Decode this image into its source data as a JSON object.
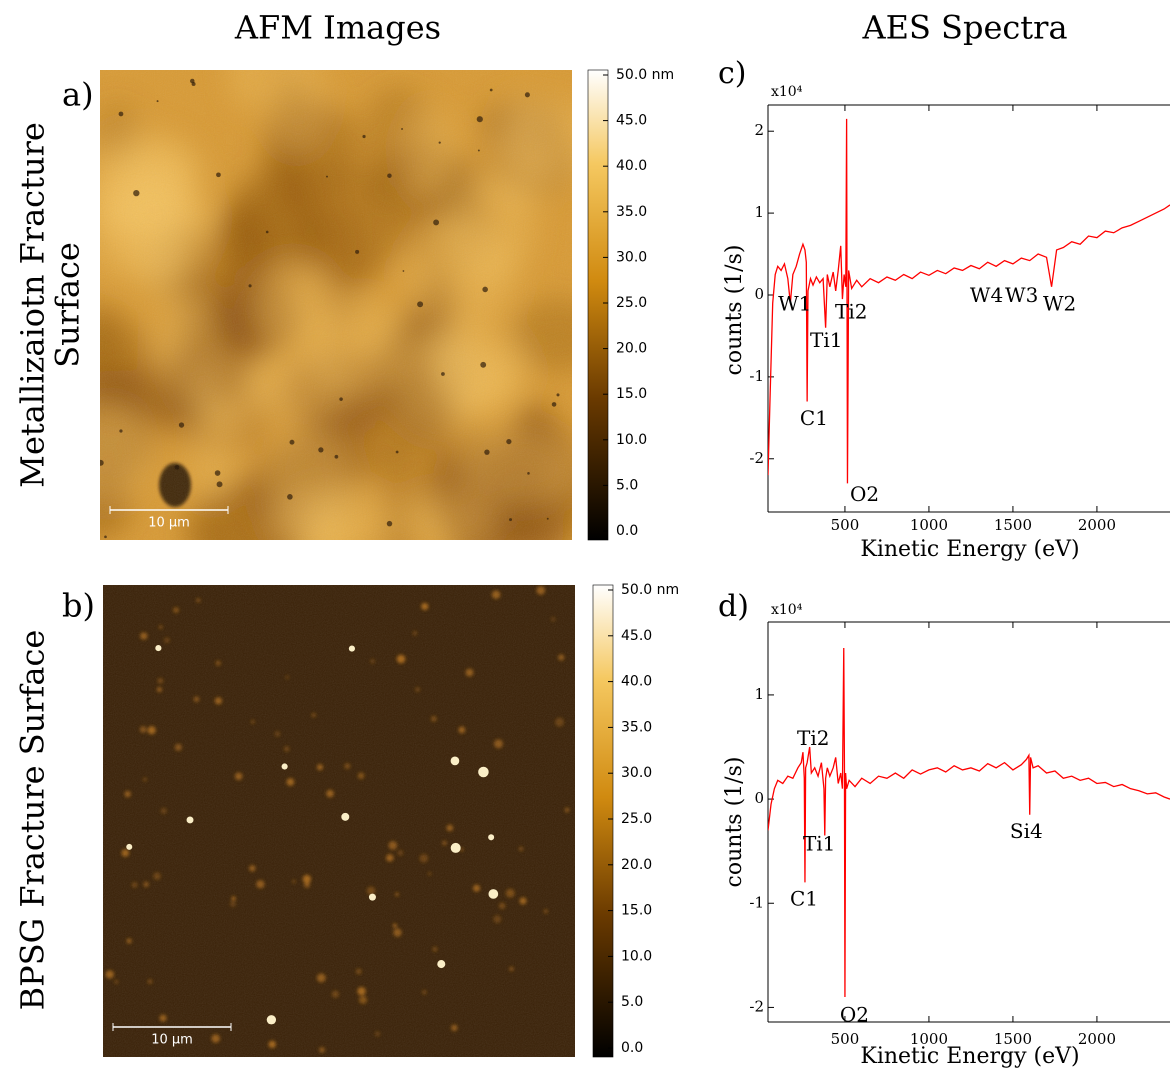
{
  "column_titles": [
    "AFM Images",
    "AES Spectra"
  ],
  "row_titles": [
    [
      "Metallizaiotn Fracture",
      "Surface"
    ],
    [
      "BPSG Fracture Surface"
    ]
  ],
  "chart_data": [
    {
      "type": "image",
      "panel": "a)",
      "scale_bar": "10 µm",
      "ylim": [
        0,
        50
      ],
      "yticks": [
        {
          "value": 0,
          "label": "0.0"
        },
        {
          "value": 5,
          "label": "5.0"
        },
        {
          "value": 10,
          "label": "10.0"
        },
        {
          "value": 15,
          "label": "15.0"
        },
        {
          "value": 20,
          "label": "20.0"
        },
        {
          "value": 25,
          "label": "25.0"
        },
        {
          "value": 30,
          "label": "30.0"
        },
        {
          "value": 35,
          "label": "35.0"
        },
        {
          "value": 40,
          "label": "40.0"
        },
        {
          "value": 45,
          "label": "45.0"
        },
        {
          "value": 50,
          "label": "50.0 nm"
        }
      ]
    },
    {
      "type": "image",
      "panel": "b)",
      "scale_bar": "10 µm",
      "ylim": [
        0,
        50
      ],
      "yticks": [
        {
          "value": 0,
          "label": "0.0"
        },
        {
          "value": 5,
          "label": "5.0"
        },
        {
          "value": 10,
          "label": "10.0"
        },
        {
          "value": 15,
          "label": "15.0"
        },
        {
          "value": 20,
          "label": "20.0"
        },
        {
          "value": 25,
          "label": "25.0"
        },
        {
          "value": 30,
          "label": "30.0"
        },
        {
          "value": 35,
          "label": "35.0"
        },
        {
          "value": 40,
          "label": "40.0"
        },
        {
          "value": 45,
          "label": "45.0"
        },
        {
          "value": 50,
          "label": "50.0 nm"
        }
      ]
    },
    {
      "type": "line",
      "panel": "c)",
      "y_multiplier": "x10⁴",
      "xlabel": "Kinetic Energy (eV)",
      "ylabel": "counts (1/s)",
      "xlim": [
        42,
        2435
      ],
      "ylim": [
        -2.65,
        2.32
      ],
      "xticks": [
        500,
        1000,
        1500,
        2000
      ],
      "yticks": [
        -2,
        -1,
        0,
        1,
        2
      ],
      "x": [
        42,
        55,
        70,
        85,
        100,
        120,
        140,
        160,
        175,
        190,
        210,
        230,
        250,
        262,
        270,
        275,
        280,
        295,
        310,
        330,
        350,
        370,
        385,
        395,
        410,
        430,
        445,
        460,
        475,
        485,
        495,
        505,
        510,
        515,
        522,
        540,
        570,
        600,
        650,
        700,
        750,
        800,
        850,
        900,
        950,
        1000,
        1050,
        1100,
        1150,
        1200,
        1250,
        1300,
        1350,
        1400,
        1450,
        1500,
        1550,
        1600,
        1650,
        1700,
        1730,
        1760,
        1800,
        1850,
        1900,
        1950,
        2000,
        2050,
        2100,
        2150,
        2200,
        2250,
        2300,
        2350,
        2400,
        2435
      ],
      "series": [
        {
          "color": "#ff0000",
          "values": [
            -2.2,
            -1.2,
            -0.1,
            0.25,
            0.35,
            0.3,
            0.38,
            0.2,
            -0.1,
            0.25,
            0.35,
            0.5,
            0.62,
            0.55,
            0.4,
            -1.3,
            0.05,
            0.2,
            0.12,
            0.22,
            0.15,
            0.2,
            -0.4,
            0.25,
            0.1,
            0.28,
            0.05,
            0.3,
            0.6,
            -0.05,
            0.25,
            0.1,
            2.15,
            -2.3,
            0.3,
            0.08,
            0.18,
            0.1,
            0.2,
            0.15,
            0.22,
            0.18,
            0.25,
            0.2,
            0.28,
            0.24,
            0.3,
            0.26,
            0.33,
            0.3,
            0.36,
            0.32,
            0.4,
            0.35,
            0.42,
            0.38,
            0.45,
            0.42,
            0.5,
            0.46,
            0.1,
            0.55,
            0.58,
            0.65,
            0.62,
            0.72,
            0.7,
            0.78,
            0.76,
            0.82,
            0.85,
            0.9,
            0.95,
            1.0,
            1.05,
            1.1
          ]
        }
      ],
      "annotations": [
        {
          "text": "W1",
          "x": 102,
          "y": -0.12
        },
        {
          "text": "Ti2",
          "x": 441,
          "y": -0.22
        },
        {
          "text": "Ti1",
          "x": 292,
          "y": -0.57
        },
        {
          "text": "C1",
          "x": 232,
          "y": -1.52
        },
        {
          "text": "O2",
          "x": 530,
          "y": -2.45
        },
        {
          "text": "W4",
          "x": 1244,
          "y": -0.02
        },
        {
          "text": "W3",
          "x": 1453,
          "y": -0.02
        },
        {
          "text": "W2",
          "x": 1679,
          "y": -0.12
        }
      ]
    },
    {
      "type": "line",
      "panel": "d)",
      "y_multiplier": "x10⁴",
      "xlabel": "Kinetic Energy (eV)",
      "ylabel": "counts (1/s)",
      "xlim": [
        42,
        2435
      ],
      "ylim": [
        -2.14,
        1.7
      ],
      "xticks": [
        500,
        1000,
        1500,
        2000
      ],
      "yticks": [
        -2,
        -1,
        0,
        1
      ],
      "x": [
        42,
        60,
        80,
        100,
        130,
        160,
        190,
        220,
        240,
        250,
        258,
        262,
        266,
        275,
        290,
        300,
        320,
        340,
        360,
        375,
        380,
        385,
        395,
        410,
        430,
        445,
        460,
        475,
        485,
        493,
        497,
        500,
        504,
        510,
        525,
        560,
        600,
        650,
        700,
        750,
        800,
        850,
        900,
        950,
        1000,
        1050,
        1100,
        1150,
        1200,
        1250,
        1300,
        1350,
        1400,
        1450,
        1500,
        1550,
        1580,
        1595,
        1600,
        1605,
        1620,
        1650,
        1700,
        1750,
        1800,
        1850,
        1900,
        1950,
        2000,
        2050,
        2100,
        2150,
        2200,
        2250,
        2300,
        2350,
        2400,
        2435
      ],
      "series": [
        {
          "color": "#ff0000",
          "values": [
            -0.3,
            -0.05,
            0.1,
            0.18,
            0.15,
            0.22,
            0.2,
            0.3,
            0.35,
            0.45,
            0.2,
            -0.8,
            0.3,
            0.35,
            0.5,
            0.25,
            0.3,
            0.22,
            0.35,
            0.1,
            -0.35,
            0.2,
            0.3,
            0.22,
            0.3,
            0.4,
            0.15,
            0.25,
            0.1,
            1.45,
            0.3,
            -1.9,
            0.25,
            0.1,
            0.18,
            0.12,
            0.2,
            0.15,
            0.22,
            0.2,
            0.25,
            0.2,
            0.28,
            0.24,
            0.28,
            0.3,
            0.26,
            0.32,
            0.28,
            0.3,
            0.27,
            0.34,
            0.3,
            0.35,
            0.28,
            0.33,
            0.38,
            0.42,
            -0.15,
            0.4,
            0.3,
            0.32,
            0.25,
            0.27,
            0.2,
            0.22,
            0.18,
            0.2,
            0.15,
            0.16,
            0.12,
            0.14,
            0.1,
            0.08,
            0.05,
            0.06,
            0.02,
            0.0
          ]
        }
      ],
      "annotations": [
        {
          "text": "Ti2",
          "x": 215,
          "y": 0.57
        },
        {
          "text": "Ti1",
          "x": 250,
          "y": -0.44
        },
        {
          "text": "C1",
          "x": 173,
          "y": -0.97
        },
        {
          "text": "O2",
          "x": 470,
          "y": -2.08
        },
        {
          "text": "Si4",
          "x": 1482,
          "y": -0.32
        }
      ]
    }
  ]
}
